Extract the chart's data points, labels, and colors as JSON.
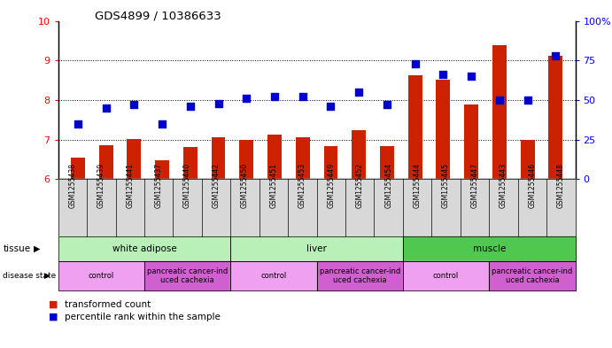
{
  "title": "GDS4899 / 10386633",
  "samples": [
    "GSM1255438",
    "GSM1255439",
    "GSM1255441",
    "GSM1255437",
    "GSM1255440",
    "GSM1255442",
    "GSM1255450",
    "GSM1255451",
    "GSM1255453",
    "GSM1255449",
    "GSM1255452",
    "GSM1255454",
    "GSM1255444",
    "GSM1255445",
    "GSM1255447",
    "GSM1255443",
    "GSM1255446",
    "GSM1255448"
  ],
  "transformed_count": [
    6.55,
    6.85,
    7.02,
    6.48,
    6.82,
    7.05,
    7.0,
    7.12,
    7.05,
    6.83,
    7.25,
    6.84,
    8.62,
    8.52,
    7.88,
    9.38,
    7.0,
    9.12
  ],
  "percentile_rank": [
    35,
    45,
    47,
    35,
    46,
    48,
    51,
    52,
    52,
    46,
    55,
    47,
    73,
    66,
    65,
    50,
    50,
    78
  ],
  "ylim_left": [
    6,
    10
  ],
  "ylim_right": [
    0,
    100
  ],
  "yticks_left": [
    6,
    7,
    8,
    9,
    10
  ],
  "yticks_right": [
    0,
    25,
    50,
    75,
    100
  ],
  "tissue_groups": [
    {
      "label": "white adipose",
      "start": 0,
      "end": 5,
      "color": "#b8f0b8"
    },
    {
      "label": "liver",
      "start": 6,
      "end": 11,
      "color": "#b8f0b8"
    },
    {
      "label": "muscle",
      "start": 12,
      "end": 17,
      "color": "#50c850"
    }
  ],
  "disease_groups": [
    {
      "label": "control",
      "start": 0,
      "end": 2,
      "color": "#f0a0f0"
    },
    {
      "label": "pancreatic cancer-ind\nuced cachexia",
      "start": 3,
      "end": 5,
      "color": "#d060d0"
    },
    {
      "label": "control",
      "start": 6,
      "end": 8,
      "color": "#f0a0f0"
    },
    {
      "label": "pancreatic cancer-ind\nuced cachexia",
      "start": 9,
      "end": 11,
      "color": "#d060d0"
    },
    {
      "label": "control",
      "start": 12,
      "end": 14,
      "color": "#f0a0f0"
    },
    {
      "label": "pancreatic cancer-ind\nuced cachexia",
      "start": 15,
      "end": 17,
      "color": "#d060d0"
    }
  ],
  "bar_color": "#cc2200",
  "dot_color": "#0000cc",
  "bg_color": "#ffffff",
  "bar_width": 0.5,
  "dot_size": 30
}
